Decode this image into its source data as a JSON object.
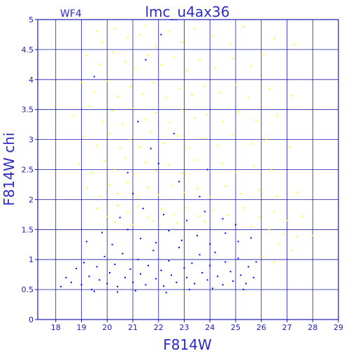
{
  "chart_data": {
    "type": "scatter",
    "title": "lmc_u4ax36",
    "subtitle": "WF4",
    "xlabel": "F814W",
    "ylabel": "F814W chi",
    "xlim": [
      17.3,
      29
    ],
    "ylim": [
      0,
      5
    ],
    "x_ticks": [
      "18",
      "19",
      "20",
      "21",
      "22",
      "23",
      "24",
      "25",
      "26",
      "27",
      "28",
      "29"
    ],
    "y_ticks": [
      "0",
      "0.5",
      "1",
      "1.5",
      "2",
      "2.5",
      "3",
      "3.5",
      "4",
      "4.5",
      "5"
    ],
    "grid": true,
    "series": [
      {
        "color": "#ffff00",
        "points": [
          [
            19.6,
            4.8
          ],
          [
            19.8,
            4.62
          ],
          [
            20.3,
            4.85
          ],
          [
            20.8,
            4.7
          ],
          [
            21.3,
            4.75
          ],
          [
            21.5,
            4.9
          ],
          [
            21.9,
            4.55
          ],
          [
            22.4,
            4.8
          ],
          [
            22.9,
            4.62
          ],
          [
            23.4,
            4.85
          ],
          [
            24.1,
            4.72
          ],
          [
            24.8,
            4.6
          ],
          [
            25.3,
            4.88
          ],
          [
            26.5,
            4.68
          ],
          [
            27.3,
            4.58
          ],
          [
            19.2,
            4.4
          ],
          [
            19.7,
            4.25
          ],
          [
            20.2,
            4.45
          ],
          [
            20.7,
            4.3
          ],
          [
            21.1,
            4.18
          ],
          [
            21.6,
            4.4
          ],
          [
            22.1,
            4.24
          ],
          [
            22.6,
            4.38
          ],
          [
            23.1,
            4.15
          ],
          [
            23.6,
            4.32
          ],
          [
            24.2,
            4.2
          ],
          [
            24.9,
            4.35
          ],
          [
            25.6,
            4.22
          ],
          [
            26.1,
            4.41
          ],
          [
            19.0,
            3.95
          ],
          [
            19.5,
            3.8
          ],
          [
            20.0,
            3.98
          ],
          [
            20.4,
            3.72
          ],
          [
            20.9,
            3.88
          ],
          [
            21.4,
            3.76
          ],
          [
            21.8,
            3.95
          ],
          [
            22.3,
            3.7
          ],
          [
            22.8,
            3.85
          ],
          [
            23.3,
            3.74
          ],
          [
            23.8,
            3.9
          ],
          [
            24.4,
            3.78
          ],
          [
            25.0,
            3.92
          ],
          [
            25.5,
            3.7
          ],
          [
            26.3,
            3.84
          ],
          [
            27.2,
            3.73
          ],
          [
            18.7,
            3.4
          ],
          [
            19.3,
            3.55
          ],
          [
            19.8,
            3.3
          ],
          [
            20.2,
            3.48
          ],
          [
            20.6,
            3.25
          ],
          [
            21.0,
            3.52
          ],
          [
            21.5,
            3.33
          ],
          [
            21.9,
            3.45
          ],
          [
            22.4,
            3.28
          ],
          [
            22.9,
            3.5
          ],
          [
            23.4,
            3.36
          ],
          [
            23.9,
            3.42
          ],
          [
            24.5,
            3.3
          ],
          [
            25.1,
            3.46
          ],
          [
            25.8,
            3.32
          ],
          [
            26.6,
            3.4
          ],
          [
            19.1,
            3.05
          ],
          [
            19.6,
            2.9
          ],
          [
            20.1,
            3.1
          ],
          [
            20.5,
            2.85
          ],
          [
            20.9,
            3.0
          ],
          [
            21.3,
            2.88
          ],
          [
            21.7,
            3.12
          ],
          [
            22.2,
            2.94
          ],
          [
            22.7,
            3.06
          ],
          [
            23.2,
            2.86
          ],
          [
            23.7,
            3.02
          ],
          [
            24.3,
            2.9
          ],
          [
            24.9,
            3.08
          ],
          [
            25.6,
            2.93
          ],
          [
            26.2,
            3.0
          ],
          [
            27.1,
            2.88
          ],
          [
            18.9,
            2.6
          ],
          [
            19.4,
            2.45
          ],
          [
            19.9,
            2.65
          ],
          [
            20.3,
            2.5
          ],
          [
            20.7,
            2.7
          ],
          [
            21.1,
            2.42
          ],
          [
            21.5,
            2.62
          ],
          [
            21.9,
            2.48
          ],
          [
            22.4,
            2.58
          ],
          [
            22.9,
            2.44
          ],
          [
            23.4,
            2.66
          ],
          [
            23.9,
            2.5
          ],
          [
            24.5,
            2.6
          ],
          [
            25.0,
            2.46
          ],
          [
            25.7,
            2.56
          ],
          [
            26.4,
            2.5
          ],
          [
            19.2,
            2.2
          ],
          [
            19.7,
            2.05
          ],
          [
            20.1,
            2.25
          ],
          [
            20.4,
            2.1
          ],
          [
            20.8,
            2.28
          ],
          [
            21.2,
            2.02
          ],
          [
            21.6,
            2.2
          ],
          [
            22.0,
            2.08
          ],
          [
            22.5,
            2.24
          ],
          [
            23.0,
            2.12
          ],
          [
            23.5,
            2.18
          ],
          [
            24.0,
            2.04
          ],
          [
            24.6,
            2.22
          ],
          [
            25.2,
            2.1
          ],
          [
            25.9,
            2.16
          ],
          [
            26.6,
            2.05
          ],
          [
            27.4,
            2.12
          ],
          [
            19.6,
            1.85
          ],
          [
            20.0,
            1.72
          ],
          [
            20.4,
            1.9
          ],
          [
            20.8,
            1.78
          ],
          [
            21.2,
            1.88
          ],
          [
            21.6,
            1.7
          ],
          [
            22.1,
            1.84
          ],
          [
            22.6,
            1.75
          ],
          [
            23.1,
            1.86
          ],
          [
            23.6,
            1.72
          ],
          [
            24.1,
            1.82
          ],
          [
            24.7,
            1.74
          ],
          [
            25.3,
            1.86
          ],
          [
            25.9,
            1.7
          ],
          [
            26.5,
            1.8
          ],
          [
            27.0,
            1.65
          ],
          [
            27.6,
            1.72
          ],
          [
            20.3,
            1.62
          ],
          [
            21.0,
            1.58
          ],
          [
            21.8,
            1.64
          ],
          [
            22.7,
            1.6
          ],
          [
            23.8,
            1.63
          ],
          [
            24.9,
            1.59
          ],
          [
            25.6,
            1.55
          ],
          [
            26.3,
            1.5
          ],
          [
            26.9,
            1.42
          ],
          [
            27.4,
            1.38
          ],
          [
            28.0,
            1.4
          ],
          [
            26.7,
            1.25
          ],
          [
            27.2,
            1.15
          ],
          [
            26.1,
            1.05
          ],
          [
            26.5,
            0.95
          ]
        ]
      },
      {
        "color": "#0000ff",
        "points": [
          [
            18.2,
            0.55
          ],
          [
            18.4,
            0.7
          ],
          [
            18.6,
            0.62
          ],
          [
            18.8,
            0.85
          ],
          [
            19.0,
            0.58
          ],
          [
            19.1,
            0.95
          ],
          [
            19.3,
            0.72
          ],
          [
            19.4,
            0.5
          ],
          [
            19.6,
            0.88
          ],
          [
            19.7,
            0.66
          ],
          [
            19.9,
            1.05
          ],
          [
            20.0,
            0.6
          ],
          [
            20.1,
            0.78
          ],
          [
            20.3,
            0.92
          ],
          [
            20.4,
            0.55
          ],
          [
            20.6,
            1.1
          ],
          [
            20.7,
            0.7
          ],
          [
            20.9,
            0.84
          ],
          [
            21.0,
            0.62
          ],
          [
            21.2,
            1.0
          ],
          [
            21.3,
            0.76
          ],
          [
            21.5,
            0.58
          ],
          [
            21.6,
            0.9
          ],
          [
            21.8,
            1.15
          ],
          [
            21.9,
            0.68
          ],
          [
            22.1,
            0.82
          ],
          [
            22.2,
            0.56
          ],
          [
            22.4,
            0.98
          ],
          [
            22.5,
            0.74
          ],
          [
            22.7,
            0.62
          ],
          [
            22.8,
            1.2
          ],
          [
            23.0,
            0.86
          ],
          [
            23.1,
            0.7
          ],
          [
            23.3,
            0.94
          ],
          [
            23.4,
            0.6
          ],
          [
            23.6,
            1.08
          ],
          [
            23.7,
            0.78
          ],
          [
            23.9,
            0.66
          ],
          [
            24.0,
            0.9
          ],
          [
            24.2,
            1.12
          ],
          [
            24.3,
            0.72
          ],
          [
            24.5,
            0.58
          ],
          [
            24.6,
            0.96
          ],
          [
            24.8,
            0.8
          ],
          [
            24.9,
            0.64
          ],
          [
            25.1,
            1.02
          ],
          [
            25.2,
            0.74
          ],
          [
            25.4,
            0.6
          ],
          [
            25.5,
            0.88
          ],
          [
            25.7,
            0.7
          ],
          [
            25.8,
            0.96
          ],
          [
            19.2,
            1.3
          ],
          [
            19.8,
            1.45
          ],
          [
            20.2,
            1.25
          ],
          [
            20.8,
            1.5
          ],
          [
            21.3,
            1.35
          ],
          [
            21.9,
            1.28
          ],
          [
            22.4,
            1.48
          ],
          [
            22.9,
            1.32
          ],
          [
            23.5,
            1.4
          ],
          [
            24.0,
            1.26
          ],
          [
            24.6,
            1.44
          ],
          [
            25.1,
            1.3
          ],
          [
            25.6,
            1.36
          ],
          [
            20.5,
            1.7
          ],
          [
            21.4,
            1.85
          ],
          [
            22.2,
            1.75
          ],
          [
            23.1,
            1.65
          ],
          [
            23.8,
            1.8
          ],
          [
            24.5,
            1.68
          ],
          [
            25.0,
            1.58
          ],
          [
            21.0,
            2.1
          ],
          [
            22.8,
            2.3
          ],
          [
            23.6,
            2.05
          ],
          [
            20.8,
            2.45
          ],
          [
            22.0,
            2.6
          ],
          [
            23.9,
            2.5
          ],
          [
            21.7,
            2.85
          ],
          [
            22.6,
            3.1
          ],
          [
            21.2,
            3.3
          ],
          [
            22.1,
            4.75
          ],
          [
            21.5,
            4.33
          ],
          [
            19.5,
            4.05
          ],
          [
            22.3,
            0.45
          ],
          [
            23.2,
            0.5
          ],
          [
            21.1,
            0.48
          ],
          [
            24.1,
            0.52
          ],
          [
            20.4,
            0.46
          ],
          [
            25.3,
            0.5
          ],
          [
            19.5,
            0.47
          ]
        ]
      }
    ]
  }
}
